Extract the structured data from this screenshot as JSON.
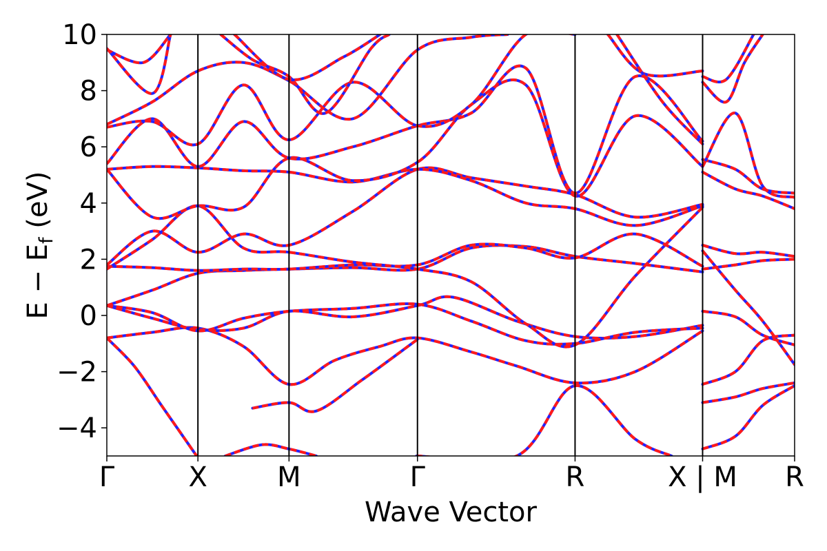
{
  "chart_data": {
    "type": "line",
    "xlabel": "Wave Vector",
    "ylabel_main": "E − E",
    "ylabel_sub": "f",
    "ylabel_unit": " (eV)",
    "ylim": [
      -5,
      10
    ],
    "yticks": [
      -4,
      -2,
      0,
      2,
      4,
      6,
      8,
      10
    ],
    "ytick_labels": [
      "−4",
      "−2",
      "0",
      "2",
      "4",
      "6",
      "8",
      "10"
    ],
    "xlim": [
      0,
      7.5
    ],
    "kpoints": [
      {
        "label": "Γ",
        "x": 0
      },
      {
        "label": "X",
        "x": 1
      },
      {
        "label": "M",
        "x": 2
      },
      {
        "label": "Γ",
        "x": 3.41
      },
      {
        "label": "R",
        "x": 5.14
      },
      {
        "label": "X | M",
        "x": 6.54
      },
      {
        "label": "R",
        "x": 7.55
      }
    ],
    "grid": false,
    "legend": "none",
    "line_colors": {
      "band": "#ff1a1a",
      "overlay": "#2323ff"
    },
    "series": [
      {
        "values": [
          [
            0,
            -0.8
          ],
          [
            0.3,
            -1.8
          ],
          [
            0.6,
            -3.2
          ],
          [
            0.9,
            -4.6
          ],
          [
            1.05,
            -5.3
          ]
        ]
      },
      {
        "values": [
          [
            0,
            -0.8
          ],
          [
            0.5,
            -0.6
          ],
          [
            1,
            -0.45
          ],
          [
            1.5,
            -1.1
          ],
          [
            2,
            -2.45
          ],
          [
            2.5,
            -1.6
          ],
          [
            3,
            -1.1
          ],
          [
            3.41,
            -0.8
          ],
          [
            4,
            -1.3
          ],
          [
            4.5,
            -1.8
          ],
          [
            5.14,
            -2.4
          ],
          [
            5.8,
            -2.0
          ],
          [
            6.54,
            -0.55
          ]
        ]
      },
      {
        "values": [
          [
            0,
            0.35
          ],
          [
            0.5,
            -0.1
          ],
          [
            1,
            -0.5
          ],
          [
            1.5,
            -0.45
          ],
          [
            2,
            0.15
          ],
          [
            2.7,
            -0.05
          ],
          [
            3.41,
            0.35
          ],
          [
            3.8,
            0.65
          ],
          [
            4.5,
            -0.2
          ],
          [
            5.14,
            -0.75
          ],
          [
            5.8,
            -0.75
          ],
          [
            6.54,
            -0.35
          ]
        ]
      },
      {
        "values": [
          [
            0,
            0.35
          ],
          [
            0.5,
            0.1
          ],
          [
            1,
            -0.55
          ],
          [
            1.5,
            -0.1
          ],
          [
            2,
            0.15
          ],
          [
            2.7,
            0.25
          ],
          [
            3.41,
            0.4
          ],
          [
            4,
            -0.2
          ],
          [
            4.6,
            -0.9
          ],
          [
            5.14,
            -1.0
          ],
          [
            5.8,
            -0.6
          ],
          [
            6.54,
            -0.45
          ]
        ]
      },
      {
        "values": [
          [
            0,
            0.35
          ],
          [
            0.5,
            0.9
          ],
          [
            1,
            1.5
          ],
          [
            1.5,
            1.6
          ],
          [
            2,
            1.65
          ],
          [
            2.7,
            1.7
          ],
          [
            3.41,
            1.65
          ],
          [
            4,
            2.4
          ],
          [
            4.6,
            2.45
          ],
          [
            5.14,
            2.1
          ],
          [
            5.8,
            1.85
          ],
          [
            6.54,
            1.55
          ]
        ]
      },
      {
        "values": [
          [
            0,
            1.75
          ],
          [
            0.5,
            1.7
          ],
          [
            1,
            1.6
          ],
          [
            1.5,
            1.65
          ],
          [
            2,
            1.65
          ],
          [
            2.7,
            1.8
          ],
          [
            3.41,
            1.8
          ],
          [
            4,
            2.5
          ],
          [
            4.6,
            2.4
          ],
          [
            5.14,
            2.05
          ],
          [
            5.8,
            2.9
          ],
          [
            6.54,
            1.75
          ]
        ]
      },
      {
        "values": [
          [
            0,
            1.65
          ],
          [
            0.5,
            2.7
          ],
          [
            1,
            3.9
          ],
          [
            1.5,
            2.4
          ],
          [
            2,
            2.25
          ],
          [
            2.7,
            1.9
          ],
          [
            3.41,
            1.65
          ],
          [
            4,
            1.2
          ],
          [
            4.6,
            -0.3
          ],
          [
            5.14,
            -1.05
          ],
          [
            5.8,
            1.4
          ],
          [
            6.54,
            3.85
          ]
        ]
      },
      {
        "values": [
          [
            0,
            1.8
          ],
          [
            0.5,
            3.0
          ],
          [
            1,
            2.25
          ],
          [
            1.5,
            2.9
          ],
          [
            2,
            2.5
          ],
          [
            2.7,
            3.7
          ],
          [
            3.41,
            5.2
          ],
          [
            4,
            4.9
          ],
          [
            4.6,
            4.6
          ],
          [
            5.14,
            4.3
          ],
          [
            5.8,
            3.5
          ],
          [
            6.54,
            3.95
          ]
        ]
      },
      {
        "values": [
          [
            0,
            5.2
          ],
          [
            0.5,
            5.3
          ],
          [
            1,
            5.25
          ],
          [
            1.5,
            5.15
          ],
          [
            2,
            5.1
          ],
          [
            2.7,
            4.75
          ],
          [
            3.41,
            5.2
          ],
          [
            4,
            4.8
          ],
          [
            4.6,
            4.0
          ],
          [
            5.14,
            3.8
          ],
          [
            5.8,
            3.2
          ],
          [
            6.54,
            3.9
          ]
        ]
      },
      {
        "values": [
          [
            0,
            5.2
          ],
          [
            0.5,
            3.5
          ],
          [
            1,
            3.9
          ],
          [
            1.5,
            3.85
          ],
          [
            2,
            5.6
          ],
          [
            2.7,
            4.8
          ],
          [
            3.41,
            5.45
          ],
          [
            4,
            7.5
          ],
          [
            4.6,
            8.2
          ],
          [
            5.14,
            4.25
          ],
          [
            5.8,
            7.1
          ],
          [
            6.54,
            5.3
          ]
        ]
      },
      {
        "values": [
          [
            0,
            5.4
          ],
          [
            0.5,
            7.0
          ],
          [
            1,
            5.3
          ],
          [
            1.5,
            6.9
          ],
          [
            2,
            5.6
          ],
          [
            2.7,
            6.0
          ],
          [
            3.41,
            6.75
          ],
          [
            4,
            7.2
          ],
          [
            4.6,
            8.8
          ],
          [
            5.14,
            4.35
          ],
          [
            5.8,
            8.5
          ],
          [
            6.54,
            6.2
          ]
        ]
      },
      {
        "values": [
          [
            0,
            6.7
          ],
          [
            0.5,
            6.9
          ],
          [
            1,
            6.1
          ],
          [
            1.5,
            8.2
          ],
          [
            2,
            6.25
          ],
          [
            2.7,
            8.3
          ],
          [
            3.41,
            6.75
          ],
          [
            4,
            7.5
          ],
          [
            4.6,
            10
          ],
          [
            5.14,
            10
          ]
        ]
      },
      {
        "values": [
          [
            0,
            6.8
          ],
          [
            0.5,
            7.6
          ],
          [
            1,
            8.7
          ],
          [
            1.5,
            9.0
          ],
          [
            2,
            8.35
          ],
          [
            2.7,
            7.0
          ],
          [
            3.41,
            9.45
          ],
          [
            4,
            9.9
          ],
          [
            4.4,
            10
          ]
        ]
      },
      {
        "values": [
          [
            0,
            9.45
          ],
          [
            0.4,
            9.0
          ],
          [
            0.7,
            10
          ]
        ]
      },
      {
        "values": [
          [
            0,
            9.5
          ],
          [
            0.5,
            7.9
          ],
          [
            0.7,
            10
          ]
        ]
      },
      {
        "values": [
          [
            1.25,
            10
          ],
          [
            1.6,
            9.1
          ],
          [
            2,
            8.5
          ],
          [
            2.4,
            7.2
          ],
          [
            2.9,
            9.5
          ],
          [
            3.1,
            10
          ]
        ]
      },
      {
        "values": [
          [
            1.4,
            10
          ],
          [
            2,
            8.4
          ],
          [
            2.6,
            9.2
          ],
          [
            3.0,
            10
          ]
        ]
      },
      {
        "values": [
          [
            5.5,
            10
          ],
          [
            5.9,
            8.6
          ],
          [
            6.54,
            8.7
          ]
        ]
      },
      {
        "values": [
          [
            5.6,
            10
          ],
          [
            6.1,
            7.6
          ],
          [
            6.54,
            6.1
          ]
        ]
      },
      {
        "values": [
          [
            3.4,
            -5
          ],
          [
            4.5,
            -5
          ],
          [
            5.14,
            -2.5
          ],
          [
            5.8,
            -4.4
          ],
          [
            6.2,
            -5
          ]
        ]
      },
      {
        "values": [
          [
            1.3,
            -5
          ],
          [
            1.7,
            -4.6
          ],
          [
            2,
            -4.75
          ],
          [
            2.3,
            -5
          ]
        ]
      },
      {
        "values": [
          [
            1.6,
            -3.3
          ],
          [
            2,
            -3.1
          ],
          [
            2.3,
            -3.4
          ],
          [
            2.8,
            -2.3
          ],
          [
            3.41,
            -0.85
          ]
        ]
      },
      {
        "values": [
          [
            6.54,
            8.3
          ],
          [
            6.8,
            7.6
          ],
          [
            7.0,
            9.0
          ],
          [
            7.2,
            10
          ]
        ]
      },
      {
        "values": [
          [
            6.54,
            8.5
          ],
          [
            6.8,
            8.4
          ],
          [
            7.1,
            10
          ]
        ]
      },
      {
        "values": [
          [
            6.54,
            5.55
          ],
          [
            6.9,
            5.2
          ],
          [
            7.2,
            4.5
          ],
          [
            7.55,
            4.35
          ]
        ]
      },
      {
        "values": [
          [
            6.54,
            5.3
          ],
          [
            6.9,
            7.2
          ],
          [
            7.2,
            4.6
          ],
          [
            7.55,
            4.2
          ]
        ]
      },
      {
        "values": [
          [
            6.54,
            5.1
          ],
          [
            6.9,
            4.5
          ],
          [
            7.2,
            4.25
          ],
          [
            7.55,
            3.8
          ]
        ]
      },
      {
        "values": [
          [
            6.54,
            2.5
          ],
          [
            6.9,
            2.2
          ],
          [
            7.2,
            2.25
          ],
          [
            7.55,
            2.1
          ]
        ]
      },
      {
        "values": [
          [
            6.54,
            2.3
          ],
          [
            6.9,
            0.9
          ],
          [
            7.2,
            -0.2
          ],
          [
            7.55,
            -1.75
          ]
        ]
      },
      {
        "values": [
          [
            6.54,
            1.65
          ],
          [
            6.9,
            1.8
          ],
          [
            7.2,
            1.95
          ],
          [
            7.55,
            2.0
          ]
        ]
      },
      {
        "values": [
          [
            6.54,
            0.15
          ],
          [
            6.9,
            -0.05
          ],
          [
            7.2,
            -0.7
          ],
          [
            7.55,
            -1.05
          ]
        ]
      },
      {
        "values": [
          [
            6.54,
            -2.45
          ],
          [
            6.9,
            -2.0
          ],
          [
            7.2,
            -0.9
          ],
          [
            7.55,
            -0.7
          ]
        ]
      },
      {
        "values": [
          [
            6.54,
            -3.1
          ],
          [
            6.9,
            -2.9
          ],
          [
            7.2,
            -2.6
          ],
          [
            7.55,
            -2.4
          ]
        ]
      },
      {
        "values": [
          [
            6.54,
            -4.75
          ],
          [
            6.9,
            -4.3
          ],
          [
            7.2,
            -3.2
          ],
          [
            7.55,
            -2.5
          ]
        ]
      }
    ]
  }
}
